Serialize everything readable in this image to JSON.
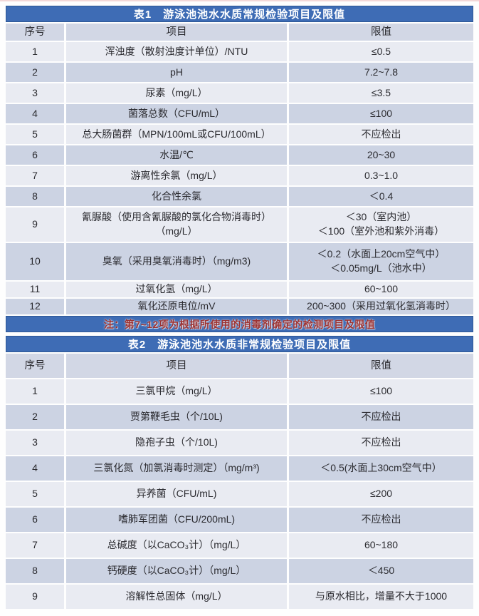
{
  "colors": {
    "title_bar": "#3e6cb5",
    "title_border": "#2d5694",
    "header_row": "#d2d7e5",
    "row_light": "#e9ebf2",
    "row_dark": "#ccd3e3",
    "note_text": "#9c3333",
    "title_text": "#ffffff"
  },
  "table1": {
    "title": "表1　游泳池池水水质常规检验项目及限值",
    "columns": {
      "no": "序号",
      "item": "项目",
      "limit": "限值"
    },
    "note": "注：第7~12项为根据所使用的消毒剂确定的检测项目及限值",
    "rows": [
      {
        "no": "1",
        "item": "浑浊度（散射浊度计单位）/NTU",
        "limit": "≤0.5"
      },
      {
        "no": "2",
        "item": "pH",
        "limit": "7.2~7.8"
      },
      {
        "no": "3",
        "item": "尿素（mg/L）",
        "limit": "≤3.5"
      },
      {
        "no": "4",
        "item": "菌落总数（CFU/mL）",
        "limit": "≤100"
      },
      {
        "no": "5",
        "item": "总大肠菌群（MPN/100mL或CFU/100mL）",
        "limit": "不应检出"
      },
      {
        "no": "6",
        "item": "水温/℃",
        "limit": "20~30"
      },
      {
        "no": "7",
        "item": "游离性余氯（mg/L）",
        "limit": "0.3~1.0"
      },
      {
        "no": "8",
        "item": "化合性余氯",
        "limit": "＜0.4"
      },
      {
        "no": "9",
        "item": "氰脲酸（使用含氰脲酸的氯化合物消毒时）\n（mg/L）",
        "limit": "＜30（室内池）\n＜100（室外池和紫外消毒）"
      },
      {
        "no": "10",
        "item": "臭氧（采用臭氧消毒时）（mg/m3)",
        "limit": "＜0.2（水面上20cm空气中）\n＜0.05mg/L（池水中）"
      },
      {
        "no": "11",
        "item": "过氧化氢（mg/L）",
        "limit": "60~100"
      },
      {
        "no": "12",
        "item": "氧化还原电位/mV",
        "limit": "200~300（采用过氧化氢消毒时）"
      }
    ]
  },
  "table2": {
    "title": "表2　游泳池池水水质非常规检验项目及限值",
    "columns": {
      "no": "序号",
      "item": "项目",
      "limit": "限值"
    },
    "rows": [
      {
        "no": "1",
        "item": "三氯甲烷（mg/L）",
        "limit": "≤100"
      },
      {
        "no": "2",
        "item": "贾第鞭毛虫（个/10L)",
        "limit": "不应检出"
      },
      {
        "no": "3",
        "item": "隐孢子虫（个/10L)",
        "limit": "不应检出"
      },
      {
        "no": "4",
        "item": "三氯化氮（加氯消毒时测定）（mg/m³)",
        "limit": "＜0.5(水面上30cm空气中）"
      },
      {
        "no": "5",
        "item": "异养菌（CFU/mL)",
        "limit": "≤200"
      },
      {
        "no": "6",
        "item": "嗜肺军团菌（CFU/200mL)",
        "limit": "不应检出"
      },
      {
        "no": "7",
        "item": "总碱度（以CaCO₃计）（mg/L）",
        "limit": "60~180"
      },
      {
        "no": "8",
        "item": "钙硬度（以CaCO₃计）（mg/L）",
        "limit": "＜450"
      },
      {
        "no": "9",
        "item": "溶解性总固体（mg/L）",
        "limit": "与原水相比，增量不大于1000"
      }
    ]
  }
}
